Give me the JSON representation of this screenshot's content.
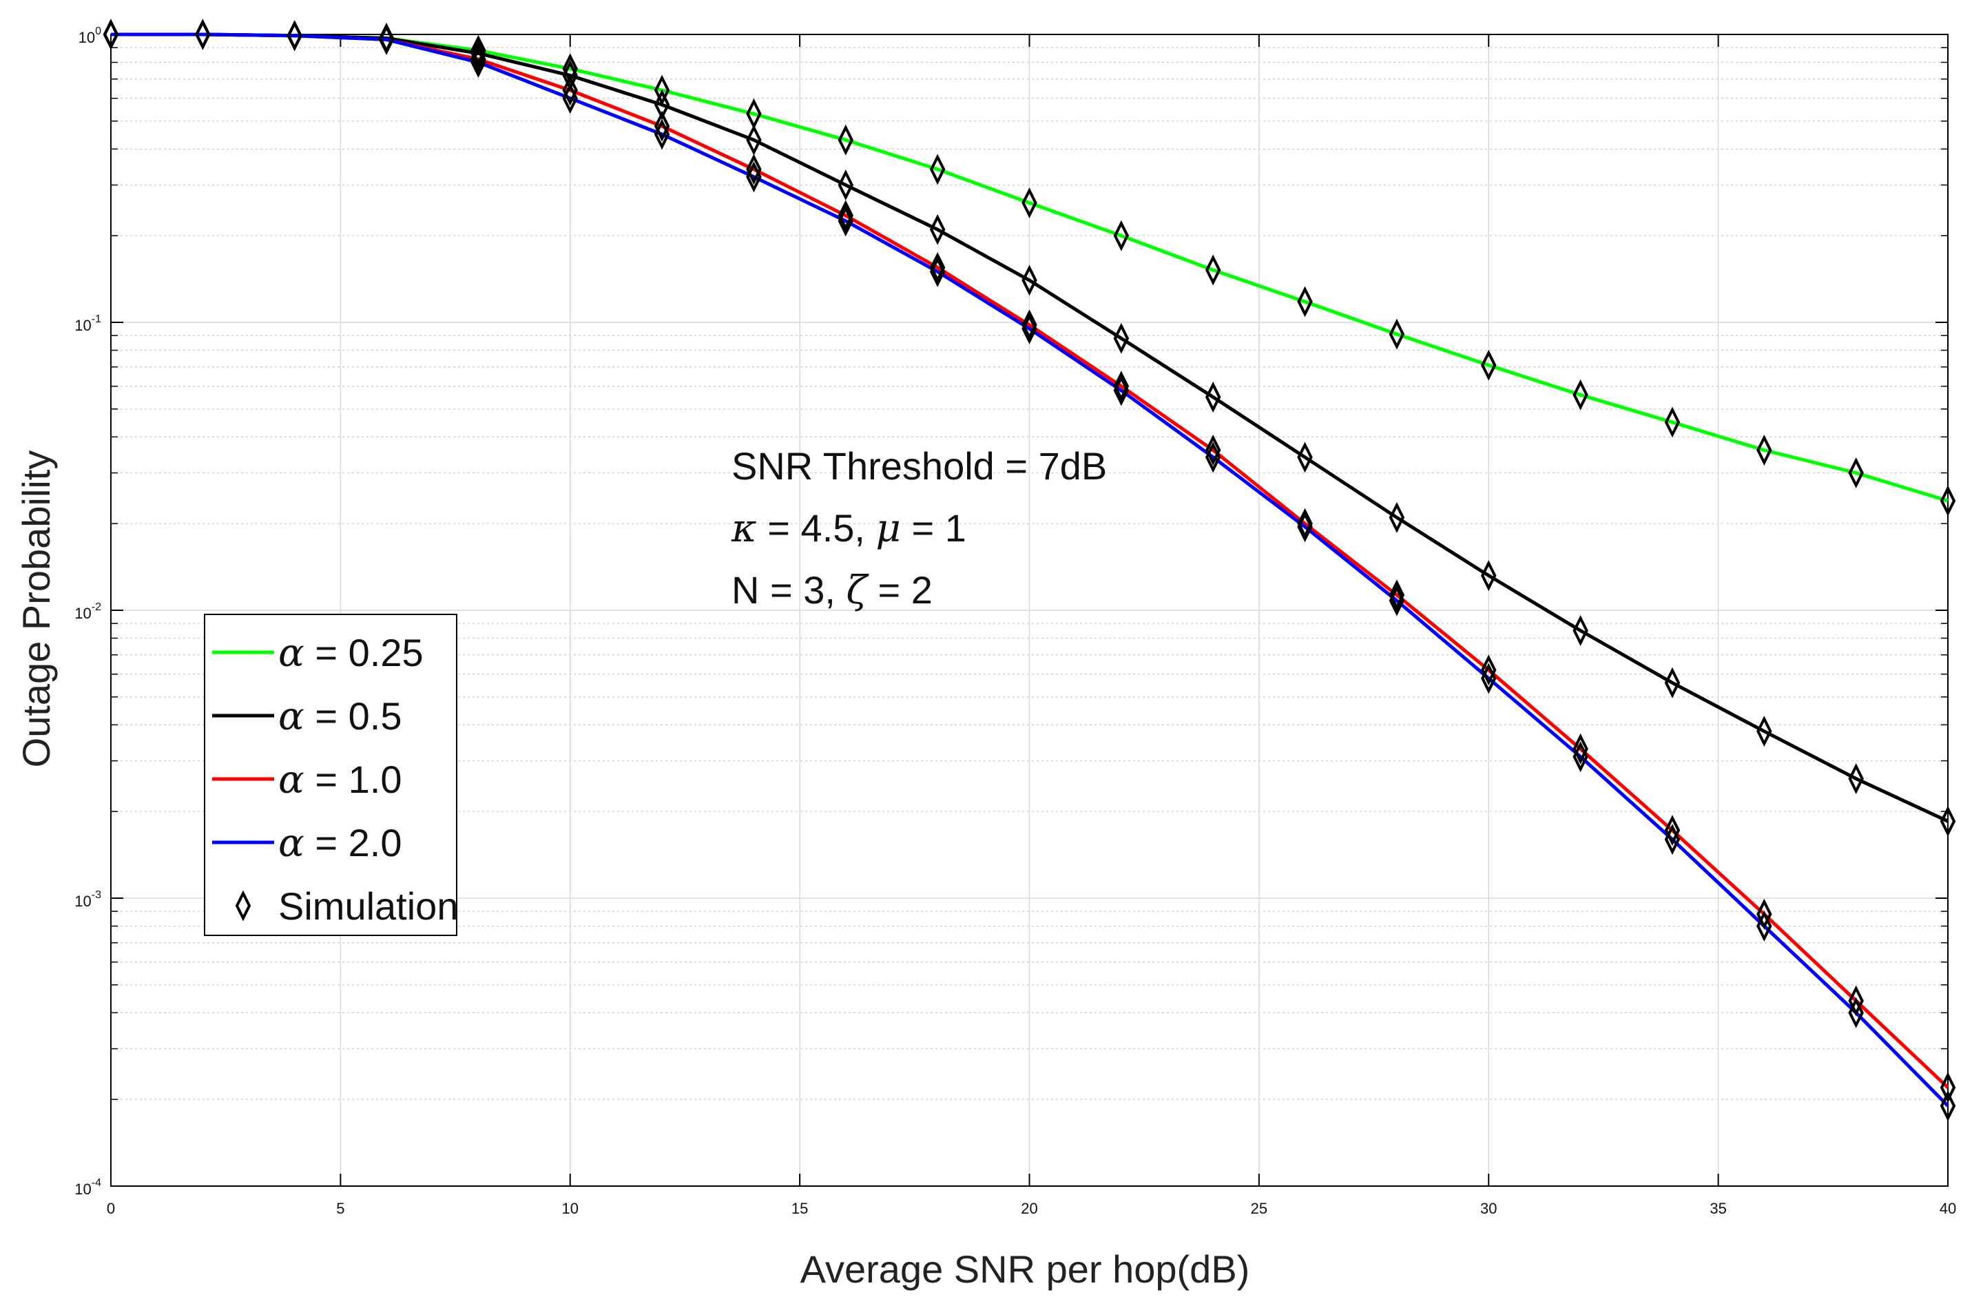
{
  "chart_data": {
    "type": "line",
    "title": "",
    "xlabel": "Average SNR per hop(dB)",
    "ylabel": "Outage Probability",
    "xlim": [
      0,
      40
    ],
    "ylim": [
      0.0001,
      1
    ],
    "yscale": "log",
    "grid": true,
    "x_ticks": [
      0,
      5,
      10,
      15,
      20,
      25,
      30,
      35,
      40
    ],
    "x_tick_labels": [
      "0",
      "5",
      "10",
      "15",
      "20",
      "25",
      "30",
      "35",
      "40"
    ],
    "y_ticks": [
      {
        "base": "10",
        "exp": "0",
        "value": 1
      },
      {
        "base": "10",
        "exp": "-1",
        "value": 0.1
      },
      {
        "base": "10",
        "exp": "-2",
        "value": 0.01
      },
      {
        "base": "10",
        "exp": "-3",
        "value": 0.001
      },
      {
        "base": "10",
        "exp": "-4",
        "value": 0.0001
      }
    ],
    "annotation": {
      "line1": "SNR Threshold = 7dB",
      "line2_sym1": "κ",
      "line2_mid": " = 4.5, ",
      "line2_sym2": "μ",
      "line2_end": " = 1",
      "line3_start": "N = 3, ",
      "line3_sym": "ζ",
      "line3_end": " = 2"
    },
    "legend": {
      "placement": "middle-left",
      "entries": [
        {
          "symbol": "α",
          "text": " = 0.25",
          "color": "#00ff00"
        },
        {
          "symbol": "α",
          "text": " = 0.5",
          "color": "#000000"
        },
        {
          "symbol": "α",
          "text": " = 1.0",
          "color": "#ff0000"
        },
        {
          "symbol": "α",
          "text": " = 2.0",
          "color": "#0000ff"
        },
        {
          "symbol": "",
          "text": "Simulation",
          "color": "#000000",
          "marker": "diamond"
        }
      ]
    },
    "x": [
      0,
      2,
      4,
      6,
      8,
      10,
      12,
      14,
      16,
      18,
      20,
      22,
      24,
      26,
      28,
      30,
      32,
      34,
      36,
      38,
      40
    ],
    "series": [
      {
        "name": "α = 0.25",
        "color": "#00ff00",
        "values": [
          1.0,
          1.0,
          0.99,
          0.97,
          0.88,
          0.76,
          0.64,
          0.53,
          0.43,
          0.34,
          0.26,
          0.2,
          0.152,
          0.118,
          0.091,
          0.071,
          0.056,
          0.045,
          0.036,
          0.03,
          0.024
        ]
      },
      {
        "name": "α = 0.5",
        "color": "#000000",
        "values": [
          1.0,
          1.0,
          0.99,
          0.97,
          0.86,
          0.72,
          0.57,
          0.43,
          0.3,
          0.21,
          0.14,
          0.088,
          0.055,
          0.034,
          0.021,
          0.0132,
          0.0085,
          0.0056,
          0.0038,
          0.0026,
          0.00185
        ]
      },
      {
        "name": "α = 1.0",
        "color": "#ff0000",
        "values": [
          1.0,
          1.0,
          0.99,
          0.96,
          0.82,
          0.64,
          0.48,
          0.34,
          0.235,
          0.155,
          0.098,
          0.06,
          0.036,
          0.02,
          0.0113,
          0.0062,
          0.0033,
          0.00172,
          0.00088,
          0.00044,
          0.00022
        ]
      },
      {
        "name": "α = 2.0",
        "color": "#0000ff",
        "values": [
          1.0,
          1.0,
          0.99,
          0.96,
          0.8,
          0.6,
          0.45,
          0.32,
          0.225,
          0.15,
          0.095,
          0.058,
          0.034,
          0.0195,
          0.0108,
          0.0058,
          0.0031,
          0.0016,
          0.0008,
          0.0004,
          0.00019
        ]
      }
    ],
    "simulation_marker": "diamond"
  }
}
